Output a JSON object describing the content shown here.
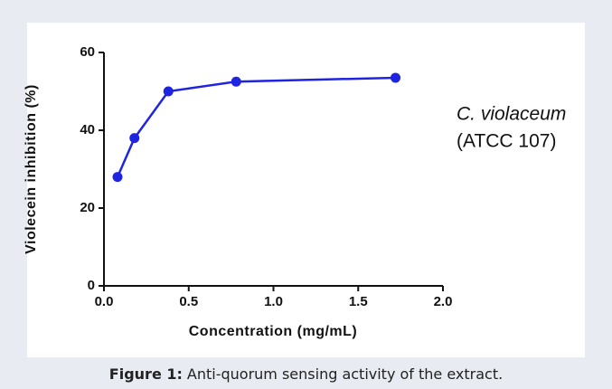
{
  "chart_data": {
    "type": "line",
    "x_label": "Concentration (mg/mL)",
    "y_label": "Violecein inhibition (%)",
    "annotations": [
      "C. violaceum",
      "(ATCC 107)"
    ],
    "x": [
      0.08,
      0.18,
      0.38,
      0.78,
      1.72
    ],
    "series": [
      {
        "name": "C. violaceum",
        "color": "#1f24e0",
        "values": [
          28,
          38,
          50,
          52.5,
          53.5
        ]
      }
    ],
    "xlim": [
      0,
      2
    ],
    "xticks": [
      {
        "value": 0,
        "label": "0.0"
      },
      0.5,
      {
        "value": 1,
        "label": "1.0"
      },
      1.5,
      {
        "value": 2,
        "label": "2.0"
      }
    ],
    "ylim": [
      0,
      60
    ],
    "yticks": [
      0,
      20,
      40,
      60
    ],
    "grid": false
  },
  "caption": {
    "label": "Figure 1:",
    "text": "Anti-quorum sensing activity of the extract."
  }
}
